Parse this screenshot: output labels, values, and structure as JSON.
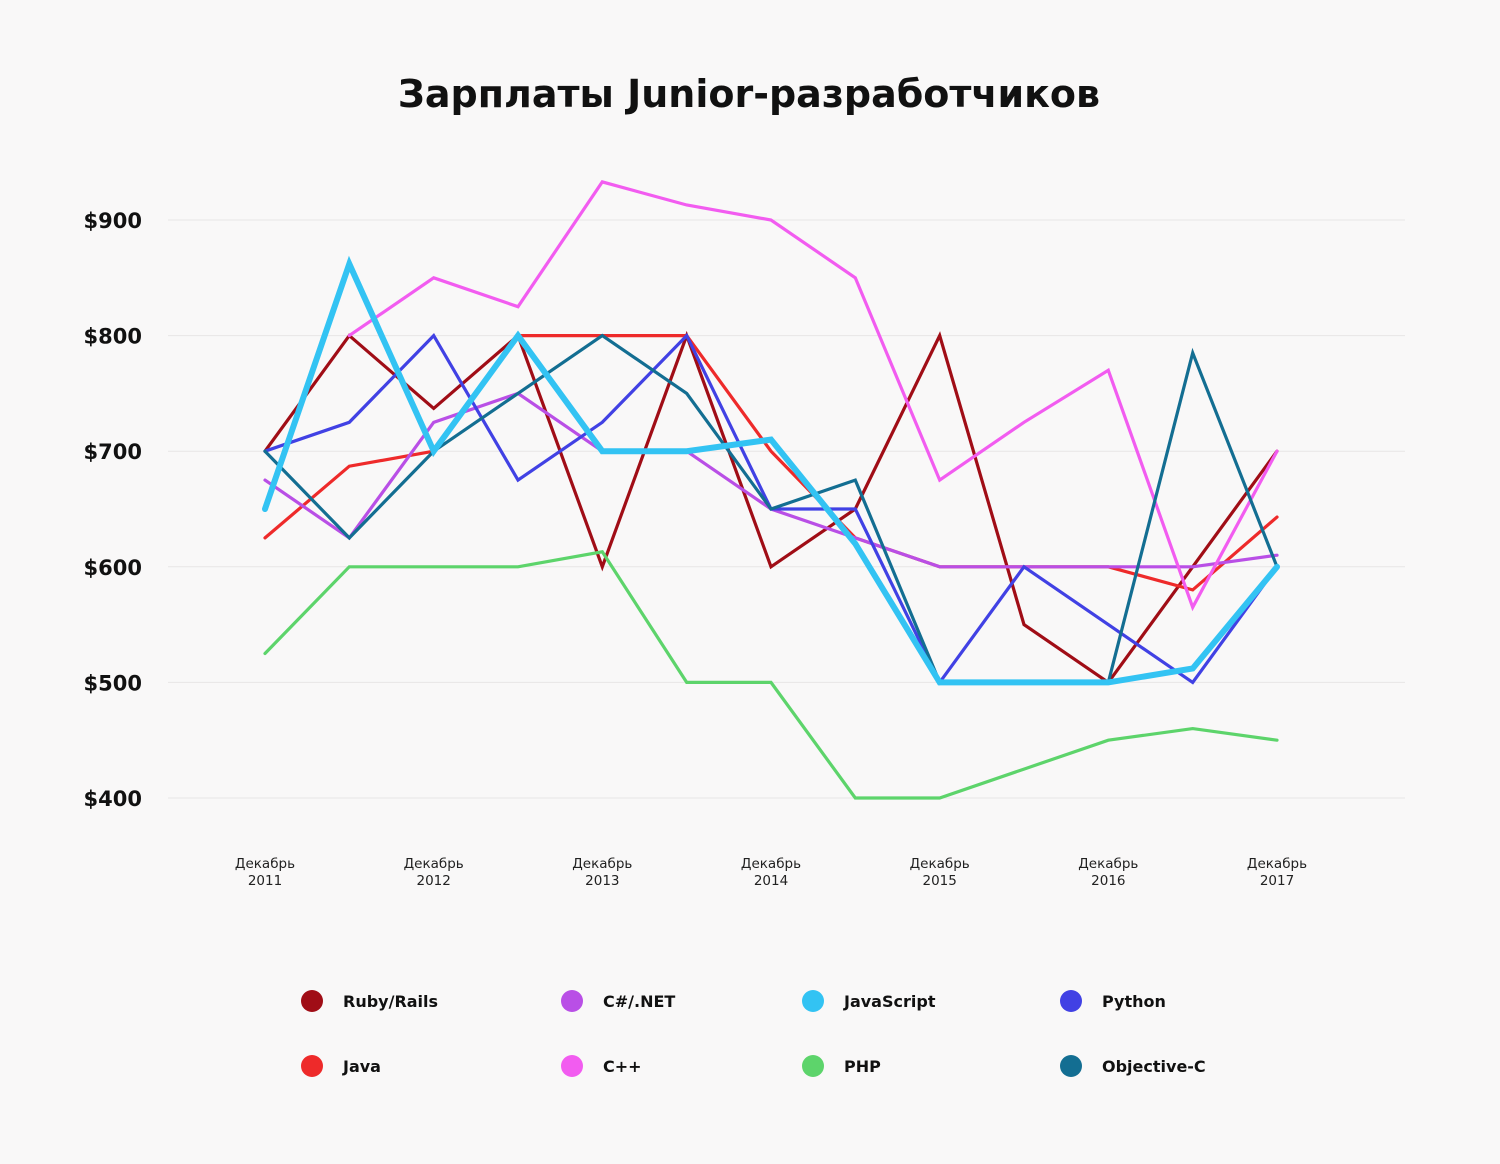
{
  "chart_data": {
    "type": "line",
    "title": "Зарплаты Junior-разработчиков",
    "xlabel": "",
    "ylabel": "",
    "ylim": [
      400,
      900
    ],
    "yticks": [
      "$900",
      "$800",
      "$700",
      "$600",
      "$500",
      "$400"
    ],
    "ytick_values": [
      900,
      800,
      700,
      600,
      500,
      400
    ],
    "grid": true,
    "legend_position": "bottom",
    "x": [
      0,
      1,
      2,
      3,
      4,
      5,
      6,
      7,
      8,
      9,
      10,
      11,
      12
    ],
    "xtick_labels": [
      {
        "pos": 0,
        "line1": "Декабрь",
        "line2": "2011"
      },
      {
        "pos": 2,
        "line1": "Декабрь",
        "line2": "2012"
      },
      {
        "pos": 4,
        "line1": "Декабрь",
        "line2": "2013"
      },
      {
        "pos": 6,
        "line1": "Декабрь",
        "line2": "2014"
      },
      {
        "pos": 8,
        "line1": "Декабрь",
        "line2": "2015"
      },
      {
        "pos": 10,
        "line1": "Декабрь",
        "line2": "2016"
      },
      {
        "pos": 12,
        "line1": "Декабрь",
        "line2": "2017"
      }
    ],
    "series": [
      {
        "name": "Ruby/Rails",
        "color": "#a00d16",
        "values": [
          700,
          800,
          737,
          800,
          600,
          800,
          600,
          650,
          800,
          550,
          500,
          600,
          700
        ]
      },
      {
        "name": "Java",
        "color": "#ee2a2a",
        "values": [
          625,
          687,
          700,
          800,
          800,
          800,
          700,
          625,
          600,
          600,
          600,
          580,
          643
        ]
      },
      {
        "name": "C#/.NET",
        "color": "#b94fe6",
        "values": [
          675,
          625,
          725,
          750,
          700,
          700,
          650,
          625,
          600,
          600,
          600,
          600,
          610
        ]
      },
      {
        "name": "C++",
        "color": "#f25cf0",
        "values": [
          null,
          800,
          850,
          825,
          933,
          913,
          900,
          850,
          675,
          725,
          770,
          565,
          700
        ]
      },
      {
        "name": "JavaScript",
        "color": "#33c3f3",
        "values": [
          650,
          862,
          700,
          800,
          700,
          700,
          710,
          620,
          500,
          500,
          500,
          512,
          600
        ]
      },
      {
        "name": "PHP",
        "color": "#5dd46b",
        "values": [
          525,
          600,
          600,
          600,
          613,
          500,
          500,
          400,
          400,
          425,
          450,
          460,
          450
        ]
      },
      {
        "name": "Python",
        "color": "#4141e4",
        "values": [
          700,
          725,
          800,
          675,
          725,
          800,
          650,
          650,
          500,
          600,
          550,
          500,
          600
        ]
      },
      {
        "name": "Objective-C",
        "color": "#136e92",
        "values": [
          700,
          625,
          700,
          750,
          800,
          750,
          650,
          675,
          500,
          500,
          500,
          785,
          600
        ]
      }
    ]
  }
}
